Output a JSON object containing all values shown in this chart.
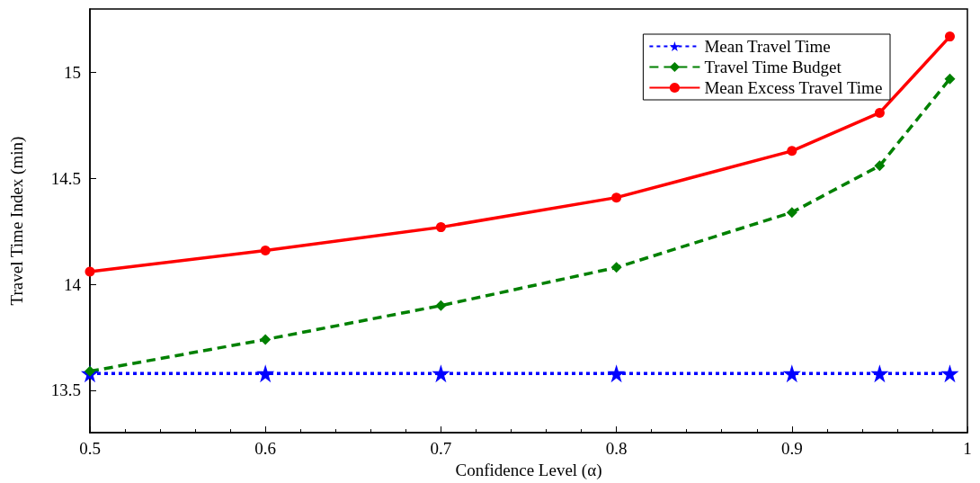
{
  "chart_data": {
    "type": "line",
    "xlabel": "Confidence Level (α)",
    "ylabel": "Travel Time Index (min)",
    "x": [
      0.5,
      0.6,
      0.7,
      0.8,
      0.9,
      0.95,
      0.99
    ],
    "series": [
      {
        "name": "Mean Travel Time",
        "color": "#0000ff",
        "marker": "star",
        "line_style": "dotted",
        "values": [
          13.58,
          13.58,
          13.58,
          13.58,
          13.58,
          13.58,
          13.58
        ]
      },
      {
        "name": "Travel Time Budget",
        "color": "#008000",
        "marker": "diamond",
        "line_style": "dashed",
        "values": [
          13.59,
          13.74,
          13.9,
          14.08,
          14.34,
          14.56,
          14.97
        ]
      },
      {
        "name": "Mean Excess Travel Time",
        "color": "#ff0000",
        "marker": "circle",
        "line_style": "solid",
        "values": [
          14.06,
          14.16,
          14.27,
          14.41,
          14.63,
          14.81,
          15.17
        ]
      }
    ],
    "xlim": [
      0.5,
      1
    ],
    "xticks": [
      0.5,
      0.6,
      0.7,
      0.8,
      0.9,
      {
        "value": 1,
        "label": "1"
      }
    ],
    "ylim": [
      13.3,
      15.3
    ],
    "yticks": [
      13.5,
      14,
      14.5,
      15
    ],
    "grid": false,
    "legend": "top right"
  }
}
